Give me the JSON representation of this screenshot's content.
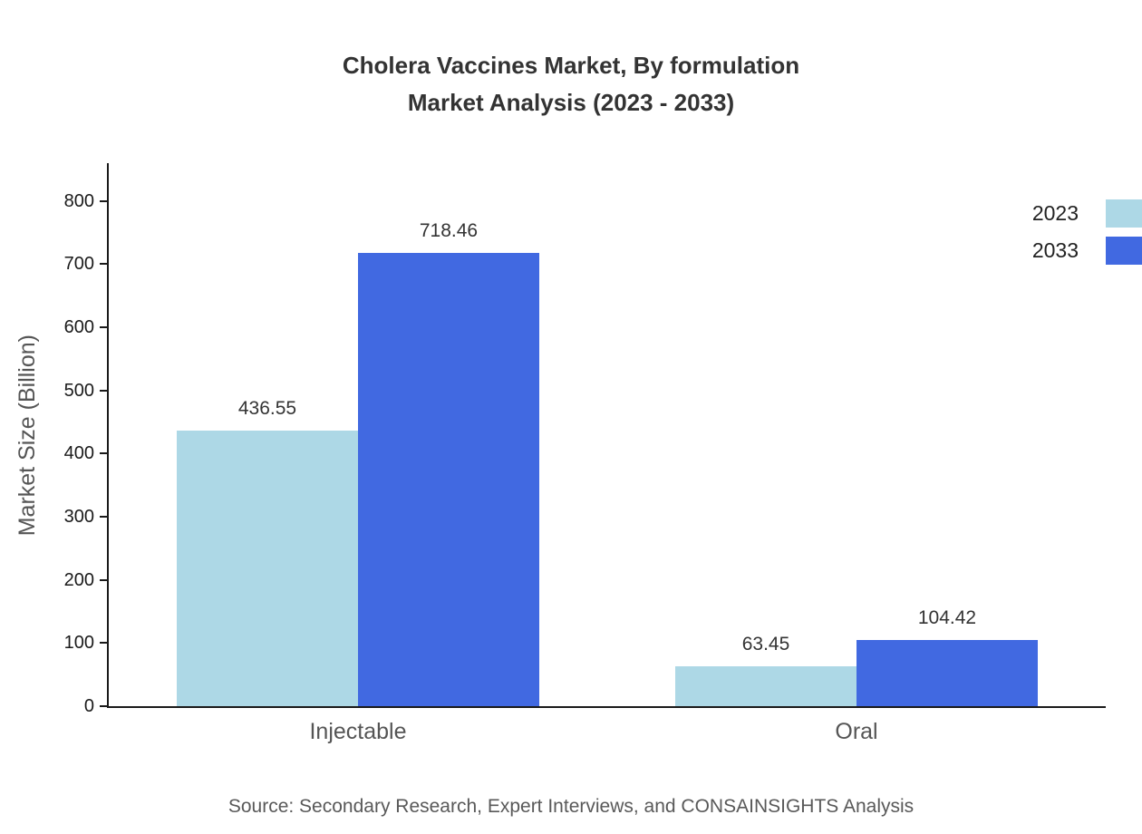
{
  "title": {
    "line1": "Cholera Vaccines Market, By formulation",
    "line2": "Market Analysis (2023 - 2033)"
  },
  "source": "Source: Secondary Research, Expert Interviews, and CONSAINSIGHTS Analysis",
  "chart_data": {
    "type": "bar",
    "title": "Cholera Vaccines Market, By formulation Market Analysis (2023 - 2033)",
    "categories": [
      "Injectable",
      "Oral"
    ],
    "series": [
      {
        "name": "2023",
        "color": "#ADD8E6",
        "values": [
          436.55,
          63.45
        ]
      },
      {
        "name": "2033",
        "color": "#4169E1",
        "values": [
          718.46,
          104.42
        ]
      }
    ],
    "xlabel": "",
    "ylabel": "Market Size (Billion)",
    "ylim": [
      0,
      860
    ],
    "yticks": [
      0,
      100,
      200,
      300,
      400,
      500,
      600,
      700,
      800
    ],
    "legend_position": "top-right",
    "grid": false
  }
}
